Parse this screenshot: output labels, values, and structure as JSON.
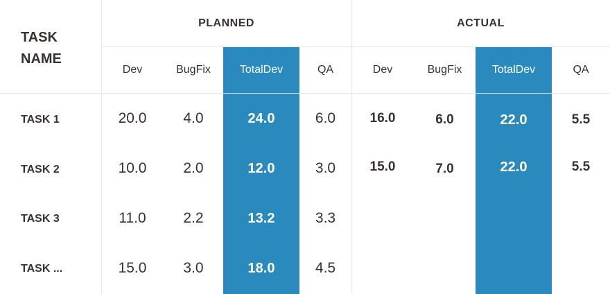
{
  "header": {
    "task_name": "TASK NAME",
    "groups": {
      "planned": "PLANNED",
      "actual": "ACTUAL"
    },
    "sub_columns": [
      "Dev",
      "BugFix",
      "TotalDev",
      "QA"
    ]
  },
  "rows": [
    {
      "task": "TASK 1",
      "planned": [
        "20.0",
        "4.0",
        "24.0",
        "6.0"
      ],
      "actual": [
        "16.0",
        "6.0",
        "22.0",
        "5.5"
      ]
    },
    {
      "task": "TASK 2",
      "planned": [
        "10.0",
        "2.0",
        "12.0",
        "3.0"
      ],
      "actual": [
        "15.0",
        "7.0",
        "22.0",
        "5.5"
      ]
    },
    {
      "task": "TASK 3",
      "planned": [
        "11.0",
        "2.2",
        "13.2",
        "3.3"
      ],
      "actual": [
        "",
        "",
        "",
        ""
      ]
    },
    {
      "task": "TASK ...",
      "planned": [
        "15.0",
        "3.0",
        "18.0",
        "4.5"
      ],
      "actual": [
        "",
        "",
        "",
        ""
      ]
    }
  ],
  "colors": {
    "highlight": "#2a89bd",
    "text": "#3a3030",
    "grid": "#e6e6e6"
  }
}
